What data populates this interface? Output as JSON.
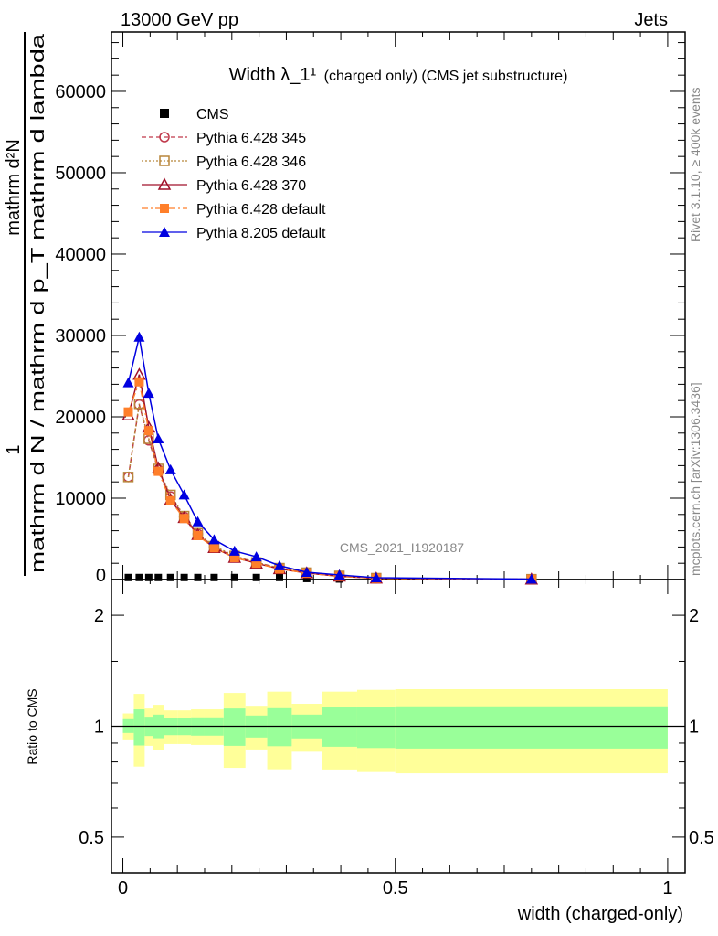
{
  "header": {
    "left": "13000 GeV pp",
    "right": "Jets"
  },
  "side": {
    "rivet": "Rivet 3.1.10, ≥ 400k events",
    "mcplots": "mcplots.cern.ch [arXiv:1306.3436]"
  },
  "watermark": "CMS_2021_I1920187",
  "ylabel": {
    "numerator": "1",
    "top": "mathrm d²N",
    "denominator": "mathrm d N / mathrm d p_T mathrm d lambda"
  },
  "chart_data": [
    {
      "type": "line",
      "title": "Width λ_1¹",
      "subtitle": "(charged only) (CMS jet substructure)",
      "xlabel": "width (charged-only)",
      "xlim": [
        -0.021,
        1.032
      ],
      "ylim": [
        0,
        67300
      ],
      "yticks": [
        0,
        10000,
        20000,
        30000,
        40000,
        50000,
        60000
      ],
      "legend_position": "top-left",
      "x_edges": [
        0,
        0.02,
        0.04,
        0.055,
        0.075,
        0.1,
        0.125,
        0.15,
        0.185,
        0.225,
        0.265,
        0.31,
        0.365,
        0.43,
        0.5,
        1.0
      ],
      "x": [
        0.01,
        0.03,
        0.0475,
        0.065,
        0.0875,
        0.1125,
        0.1375,
        0.1675,
        0.205,
        0.245,
        0.2875,
        0.3375,
        0.3975,
        0.465,
        0.75
      ],
      "series": [
        {
          "name": "CMS",
          "color": "#000000",
          "marker": "filled-square",
          "line": "none",
          "values": [
            250,
            250,
            250,
            250,
            250,
            250,
            250,
            250,
            250,
            250,
            250,
            120,
            60,
            30,
            5
          ]
        },
        {
          "name": "Pythia 6.428 345",
          "color": "#c0394b",
          "marker": "open-circle",
          "line": "dashed",
          "values": [
            12600,
            21500,
            17100,
            13500,
            10200,
            7700,
            5600,
            4000,
            2800,
            2100,
            1400,
            850,
            450,
            170,
            40
          ]
        },
        {
          "name": "Pythia 6.428 346",
          "color": "#b8863b",
          "marker": "open-square",
          "line": "dotted",
          "values": [
            12600,
            21600,
            17300,
            13600,
            10400,
            7800,
            5700,
            4100,
            2900,
            2100,
            1400,
            850,
            450,
            170,
            40
          ]
        },
        {
          "name": "Pythia 6.428 370",
          "color": "#a0102a",
          "marker": "open-triangle",
          "line": "solid",
          "values": [
            20200,
            25200,
            18700,
            13700,
            9800,
            7600,
            5500,
            3900,
            2700,
            2000,
            1300,
            800,
            400,
            150,
            30
          ]
        },
        {
          "name": "Pythia 6.428 default",
          "color": "#ff7f2a",
          "marker": "filled-square",
          "line": "dashdot",
          "values": [
            20600,
            24300,
            18300,
            13300,
            9700,
            7500,
            5400,
            3900,
            2700,
            2000,
            1300,
            800,
            400,
            150,
            30
          ]
        },
        {
          "name": "Pythia 8.205 default",
          "color": "#0000e0",
          "marker": "filled-triangle",
          "line": "solid",
          "values": [
            24200,
            29800,
            22900,
            17300,
            13500,
            10400,
            7100,
            4900,
            3500,
            2800,
            1700,
            900,
            560,
            220,
            50
          ]
        }
      ]
    },
    {
      "type": "area",
      "ylabel": "Ratio to CMS",
      "yscale": "log",
      "ylim": [
        0.4,
        2.5
      ],
      "yticks": [
        0.5,
        1,
        2
      ],
      "xticks": [
        0,
        0.5,
        1
      ],
      "stat_color": "#99ff99",
      "total_color": "#ffff99",
      "bands": [
        {
          "tot_lo": 0.916,
          "stat_lo": 0.959,
          "stat_hi": 1.045,
          "tot_hi": 1.083
        },
        {
          "tot_lo": 0.777,
          "stat_lo": 0.887,
          "stat_hi": 1.111,
          "tot_hi": 1.224
        },
        {
          "tot_lo": 0.885,
          "stat_lo": 0.941,
          "stat_hi": 1.061,
          "tot_hi": 1.117
        },
        {
          "tot_lo": 0.86,
          "stat_lo": 0.928,
          "stat_hi": 1.075,
          "tot_hi": 1.143
        },
        {
          "tot_lo": 0.895,
          "stat_lo": 0.946,
          "stat_hi": 1.055,
          "tot_hi": 1.104
        },
        {
          "tot_lo": 0.895,
          "stat_lo": 0.946,
          "stat_hi": 1.055,
          "tot_hi": 1.104
        },
        {
          "tot_lo": 0.89,
          "stat_lo": 0.943,
          "stat_hi": 1.057,
          "tot_hi": 1.111
        },
        {
          "tot_lo": 0.89,
          "stat_lo": 0.943,
          "stat_hi": 1.057,
          "tot_hi": 1.111
        },
        {
          "tot_lo": 0.771,
          "stat_lo": 0.885,
          "stat_hi": 1.117,
          "tot_hi": 1.231
        },
        {
          "tot_lo": 0.865,
          "stat_lo": 0.932,
          "stat_hi": 1.069,
          "tot_hi": 1.136
        },
        {
          "tot_lo": 0.764,
          "stat_lo": 0.883,
          "stat_hi": 1.119,
          "tot_hi": 1.241
        },
        {
          "tot_lo": 0.853,
          "stat_lo": 0.927,
          "stat_hi": 1.075,
          "tot_hi": 1.15
        },
        {
          "tot_lo": 0.763,
          "stat_lo": 0.88,
          "stat_hi": 1.126,
          "tot_hi": 1.241
        },
        {
          "tot_lo": 0.751,
          "stat_lo": 0.873,
          "stat_hi": 1.126,
          "tot_hi": 1.255
        },
        {
          "tot_lo": 0.745,
          "stat_lo": 0.87,
          "stat_hi": 1.132,
          "tot_hi": 1.26
        }
      ]
    }
  ]
}
